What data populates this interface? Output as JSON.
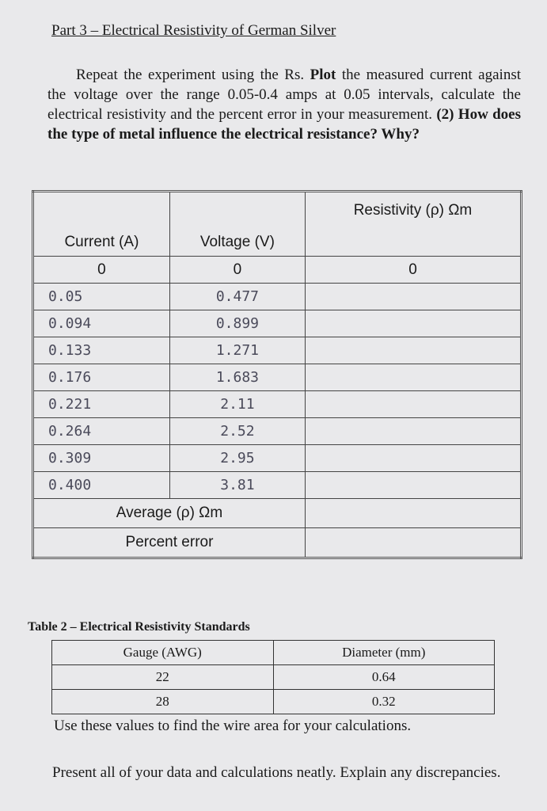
{
  "header": {
    "title": "Part 3 – Electrical Resistivity of German Silver"
  },
  "instruction": {
    "plain": "Repeat the experiment using the Rs.",
    "bold_1": "Plot",
    "plain_2": "the measured current against the voltage over the range 0.05-0.4 amps at 0.05 intervals, calculate the electrical resistivity and the percent error in your measurement.",
    "bold_2": "(2) How does the type of metal influence the electrical resistance? Why?"
  },
  "table": {
    "headers": [
      "Current (A)",
      "Voltage (V)",
      "Resistivity (ρ) Ωm"
    ],
    "rows": [
      [
        "0",
        "0",
        "0"
      ],
      [
        "0.05",
        "0.477"
      ],
      [
        "0.094",
        "0.899"
      ],
      [
        "0.133",
        "1.271"
      ],
      [
        "0.176",
        "1.683"
      ],
      [
        "0.221",
        "2.11"
      ],
      [
        "0.264",
        "2.52"
      ],
      [
        "0.309",
        "2.95"
      ],
      [
        "0.400",
        "3.81"
      ]
    ],
    "summary_rows": [
      "Average (ρ) Ωm",
      "Percent error"
    ]
  },
  "table2": {
    "title": "Table 2 – Electrical Resistivity Standards",
    "headers": [
      "Gauge (AWG)",
      "Diameter (mm)"
    ],
    "rows": [
      [
        "22",
        "0.64"
      ],
      [
        "28",
        "0.32"
      ]
    ],
    "note": "Use these values to find the wire area for your calculations."
  },
  "footer": {
    "text": "Present all of your data and calculations neatly. Explain any discrepancies."
  }
}
